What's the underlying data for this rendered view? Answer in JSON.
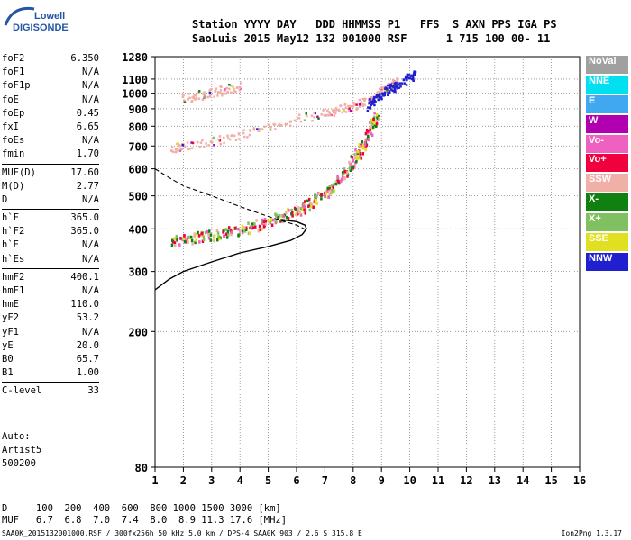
{
  "logo": {
    "line1": "Lowell",
    "line2": "DIGISONDE"
  },
  "header": {
    "line1": "Station YYYY DAY   DDD HHMMSS P1   FFS  S AXN PPS IGA PS",
    "line2": "SaoLuis 2015 May12 132 001000 RSF      1 715 100 00- 11"
  },
  "params": [
    {
      "label": "foF2",
      "value": "6.350"
    },
    {
      "label": "foF1",
      "value": "N/A"
    },
    {
      "label": "foF1p",
      "value": "N/A"
    },
    {
      "label": "foE",
      "value": "N/A"
    },
    {
      "label": "foEp",
      "value": "0.45"
    },
    {
      "label": "fxI",
      "value": "6.65"
    },
    {
      "label": "foEs",
      "value": "N/A"
    },
    {
      "label": "fmin",
      "value": "1.70"
    },
    {
      "sep": true
    },
    {
      "label": "MUF(D)",
      "value": "17.60"
    },
    {
      "label": "M(D)",
      "value": "2.77"
    },
    {
      "label": "D",
      "value": "N/A"
    },
    {
      "sep": true
    },
    {
      "label": "h`F",
      "value": "365.0"
    },
    {
      "label": "h`F2",
      "value": "365.0"
    },
    {
      "label": "h`E",
      "value": "N/A"
    },
    {
      "label": "h`Es",
      "value": "N/A"
    },
    {
      "sep": true
    },
    {
      "label": "hmF2",
      "value": "400.1"
    },
    {
      "label": "hmF1",
      "value": "N/A"
    },
    {
      "label": "hmE",
      "value": "110.0"
    },
    {
      "label": "yF2",
      "value": "53.2"
    },
    {
      "label": "yF1",
      "value": "N/A"
    },
    {
      "label": "yE",
      "value": "20.0"
    },
    {
      "label": "B0",
      "value": "65.7"
    },
    {
      "label": "B1",
      "value": "1.00"
    },
    {
      "sep": true
    },
    {
      "label": "C-level",
      "value": "33"
    },
    {
      "sep": true
    }
  ],
  "auto": {
    "line1": "Auto:",
    "line2": "Artist5",
    "line3": "500200"
  },
  "legend": [
    {
      "label": "NoVal",
      "color": "#a0a0a0"
    },
    {
      "label": "NNE",
      "color": "#00e0f0"
    },
    {
      "label": "E",
      "color": "#40a8f0"
    },
    {
      "label": "W",
      "color": "#b000b0"
    },
    {
      "label": "Vo-",
      "color": "#f060c0"
    },
    {
      "label": "Vo+",
      "color": "#f0003c"
    },
    {
      "label": "SSW",
      "color": "#f0b0a8"
    },
    {
      "label": "X-",
      "color": "#108010"
    },
    {
      "label": "X+",
      "color": "#80c060"
    },
    {
      "label": "SSE",
      "color": "#e0e020"
    },
    {
      "label": "NNW",
      "color": "#2020d0"
    }
  ],
  "footer": {
    "d_line": "D     100  200  400  600  800 1000 1500 3000 [km]",
    "muf_line": "MUF   6.7  6.8  7.0  7.4  8.0  8.9 11.3 17.6 [MHz]",
    "file_line": "SAA0K_2015132001000.RSF / 300fx256h 50 kHz 5.0 km / DPS-4 SAA0K 903 / 2.6 S 315.8 E",
    "version": "Ion2Png 1.3.17"
  },
  "chart_data": {
    "type": "scatter",
    "xlim": [
      1,
      16
    ],
    "ylim": [
      80,
      1280
    ],
    "x_ticks": [
      "1",
      "2",
      "3",
      "4",
      "5",
      "6",
      "7",
      "8",
      "9",
      "10",
      "11",
      "12",
      "13",
      "14",
      "15",
      "16"
    ],
    "y_ticks": [
      "80",
      "200",
      "300",
      "400",
      "500",
      "600",
      "700",
      "800",
      "900",
      "1000",
      "1100",
      "1280"
    ],
    "yscale": "log",
    "grid": true,
    "series": [
      {
        "name": "O-trace F2",
        "color": "#f0003c",
        "x": [
          1.6,
          2.0,
          2.5,
          3.0,
          3.5,
          4.0,
          4.5,
          5.0,
          5.5,
          6.0,
          6.3,
          6.6,
          7.0,
          7.3,
          7.6,
          7.9,
          8.1,
          8.3,
          8.5,
          8.7,
          8.8
        ],
        "y": [
          372,
          375,
          380,
          385,
          392,
          400,
          410,
          422,
          438,
          455,
          470,
          490,
          510,
          540,
          575,
          620,
          660,
          700,
          760,
          830,
          870
        ]
      },
      {
        "name": "2-hop F2",
        "color": "#f0b0a8",
        "x": [
          1.6,
          2.0,
          3.0,
          4.0,
          5.0,
          6.0,
          7.0,
          7.5,
          8.0,
          8.5,
          8.9,
          9.2,
          9.4,
          9.5
        ],
        "y": [
          690,
          700,
          720,
          760,
          800,
          840,
          880,
          900,
          920,
          960,
          1000,
          1040,
          1060,
          1080
        ]
      },
      {
        "name": "3-hop F2",
        "color": "#f0b0a8",
        "x": [
          1.9,
          2.5,
          3.0,
          3.5,
          4.0
        ],
        "y": [
          970,
          990,
          1010,
          1030,
          1050
        ]
      },
      {
        "name": "X-trace",
        "color": "#2020d0",
        "x": [
          8.5,
          8.7,
          9.0,
          9.3,
          9.5,
          10.0,
          10.1
        ],
        "y": [
          920,
          960,
          1000,
          1040,
          1060,
          1120,
          1150
        ]
      },
      {
        "name": "MUF(D) dashed",
        "color": "#000000",
        "x": [
          1.0,
          1.5,
          2.0,
          3.0,
          4.0,
          5.0,
          6.0,
          6.4
        ],
        "y": [
          600,
          565,
          535,
          500,
          465,
          435,
          410,
          395
        ]
      },
      {
        "name": "Profile",
        "color": "#000000",
        "x": [
          1.0,
          1.5,
          2.0,
          3.0,
          4.0,
          5.0,
          5.8,
          6.2,
          6.35,
          6.3,
          6.0,
          5.5
        ],
        "y": [
          265,
          285,
          300,
          320,
          340,
          355,
          370,
          385,
          400,
          410,
          420,
          425
        ]
      }
    ]
  }
}
